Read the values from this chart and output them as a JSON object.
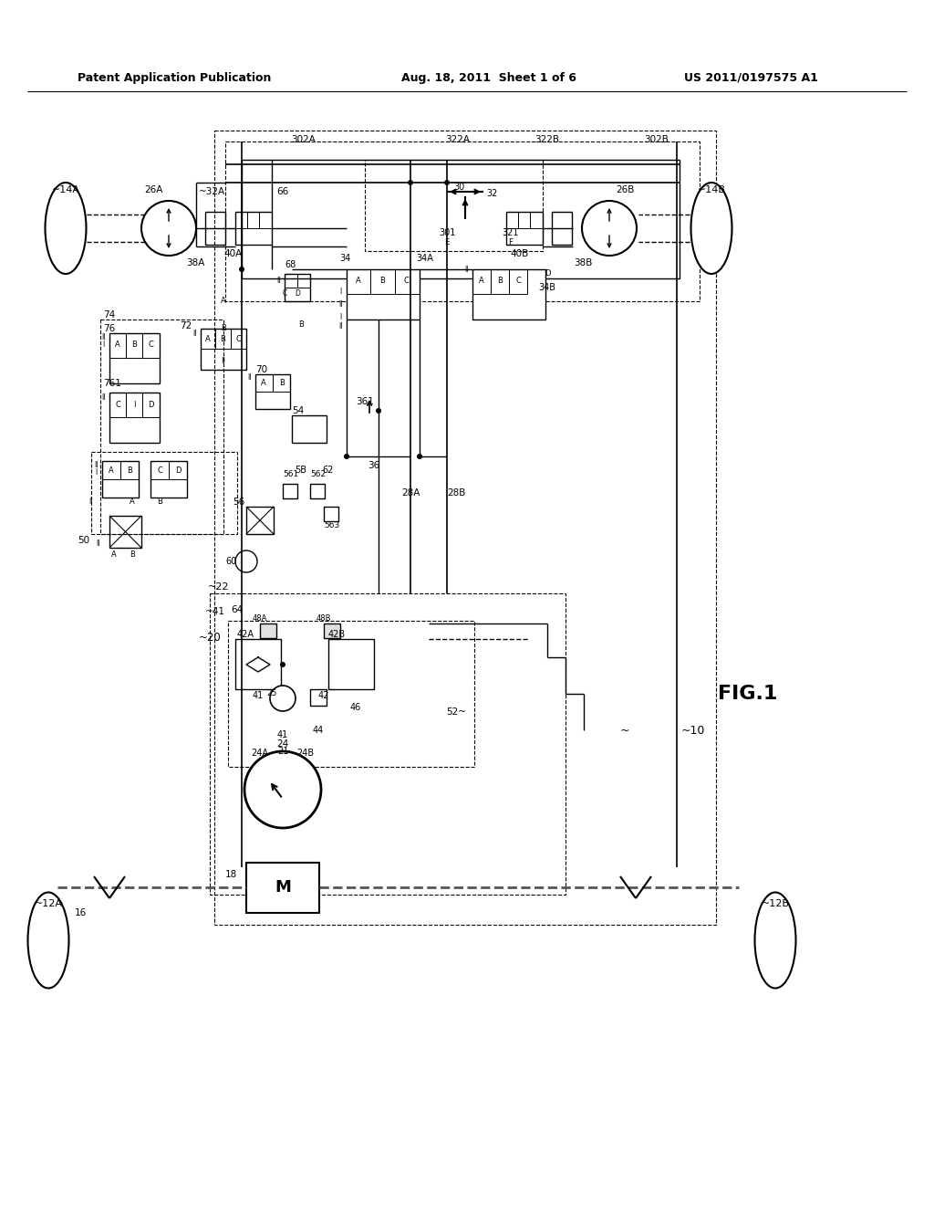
{
  "bg_color": "#ffffff",
  "header_left": "Patent Application Publication",
  "header_mid": "Aug. 18, 2011  Sheet 1 of 6",
  "header_right": "US 2011/0197575 A1"
}
